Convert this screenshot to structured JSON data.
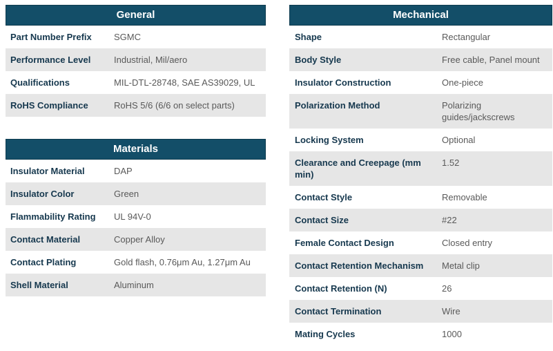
{
  "colors": {
    "header_bg": "#134e68",
    "header_border": "#0d3a4e",
    "stripe": "#e6e6e6",
    "label_color": "#16384e",
    "value_color": "#595959"
  },
  "tables": [
    {
      "title": "General",
      "rows": [
        {
          "label": "Part Number Prefix",
          "value": "SGMC"
        },
        {
          "label": "Performance Level",
          "value": "Industrial, Mil/aero"
        },
        {
          "label": "Qualifications",
          "value": "MIL-DTL-28748, SAE AS39029, UL"
        },
        {
          "label": "RoHS Compliance",
          "value": "RoHS 5/6 (6/6 on select parts)"
        }
      ]
    },
    {
      "title": "Materials",
      "rows": [
        {
          "label": "Insulator Material",
          "value": "DAP"
        },
        {
          "label": "Insulator Color",
          "value": "Green"
        },
        {
          "label": "Flammability Rating",
          "value": "UL 94V-0"
        },
        {
          "label": "Contact Material",
          "value": "Copper Alloy"
        },
        {
          "label": "Contact Plating",
          "value": "Gold flash, 0.76μm Au, 1.27μm Au"
        },
        {
          "label": "Shell Material",
          "value": "Aluminum"
        }
      ]
    },
    {
      "title": "Mechanical",
      "rows": [
        {
          "label": "Shape",
          "value": "Rectangular"
        },
        {
          "label": "Body Style",
          "value": "Free cable, Panel mount"
        },
        {
          "label": "Insulator Construction",
          "value": "One-piece"
        },
        {
          "label": "Polarization Method",
          "value": "Polarizing guides/jackscrews"
        },
        {
          "label": "Locking System",
          "value": "Optional"
        },
        {
          "label": "Clearance and Creepage (mm min)",
          "value": "1.52"
        },
        {
          "label": "Contact Style",
          "value": "Removable"
        },
        {
          "label": "Contact Size",
          "value": "#22"
        },
        {
          "label": "Female Contact Design",
          "value": "Closed entry"
        },
        {
          "label": "Contact Retention Mechanism",
          "value": "Metal clip"
        },
        {
          "label": "Contact Retention (N)",
          "value": "26"
        },
        {
          "label": "Contact Termination",
          "value": "Wire"
        },
        {
          "label": "Mating Cycles",
          "value": "1000"
        }
      ]
    }
  ]
}
